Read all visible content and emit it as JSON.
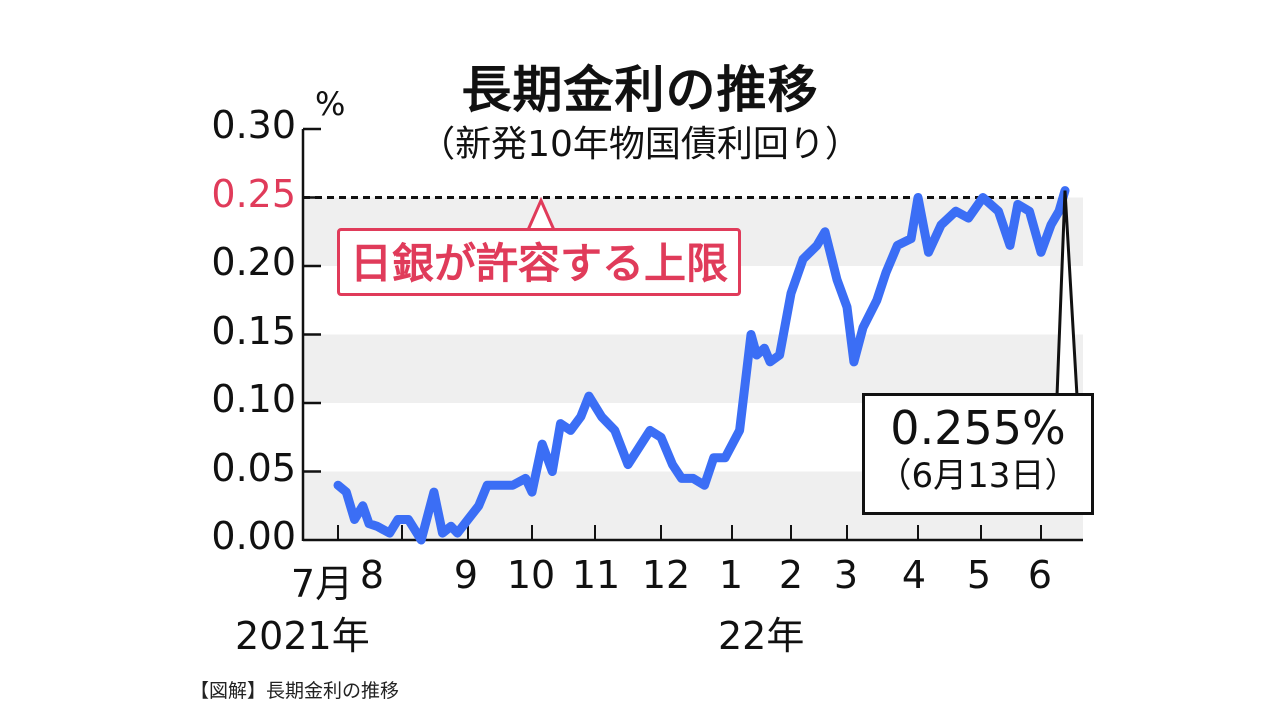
{
  "title": "長期金利の推移",
  "subtitle": "（新発10年物国債利回り）",
  "y_unit": "%",
  "y_ticks": [
    {
      "label": "0.30",
      "value": 0.3,
      "color": "#111111"
    },
    {
      "label": "0.25",
      "value": 0.25,
      "color": "#e03b5a"
    },
    {
      "label": "0.20",
      "value": 0.2,
      "color": "#111111"
    },
    {
      "label": "0.15",
      "value": 0.15,
      "color": "#111111"
    },
    {
      "label": "0.10",
      "value": 0.1,
      "color": "#111111"
    },
    {
      "label": "0.05",
      "value": 0.05,
      "color": "#111111"
    },
    {
      "label": "0.00",
      "value": 0.0,
      "color": "#111111"
    }
  ],
  "x_months": [
    "7月",
    "8",
    "9",
    "10",
    "11",
    "12",
    "1",
    "2",
    "3",
    "4",
    "5",
    "6"
  ],
  "x_years": [
    {
      "label": "2021年"
    },
    {
      "label": "22年"
    }
  ],
  "limit_annotation": {
    "label": "日銀が許容する上限",
    "value": 0.25
  },
  "callout": {
    "value": "0.255%",
    "date": "（6月13日）"
  },
  "caption": "【図解】長期金利の推移",
  "colors": {
    "line": "#3b6ef5",
    "limit": "#e03b5a",
    "band": "#efefef",
    "axis": "#111111"
  },
  "chart_data": {
    "type": "line",
    "title": "長期金利の推移",
    "subtitle": "（新発10年物国債利回り）",
    "xlabel": "",
    "ylabel": "%",
    "ylim": [
      0.0,
      0.3
    ],
    "y_ticks": [
      0.0,
      0.05,
      0.1,
      0.15,
      0.2,
      0.25,
      0.3
    ],
    "x_tick_labels": [
      "7月",
      "8",
      "9",
      "10",
      "11",
      "12",
      "1",
      "2",
      "3",
      "4",
      "5",
      "6"
    ],
    "x_year_labels": [
      "2021年",
      "22年"
    ],
    "grid": "alternating horizontal bands",
    "reference_line": {
      "value": 0.25,
      "label": "日銀が許容する上限",
      "style": "dashed"
    },
    "annotation": {
      "x": "2022-06-13",
      "y": 0.255,
      "text": "0.255%（6月13日）"
    },
    "series": [
      {
        "name": "新発10年物国債利回り",
        "x": [
          "2021-07-01",
          "2021-07-05",
          "2021-07-09",
          "2021-07-13",
          "2021-07-16",
          "2021-07-20",
          "2021-07-26",
          "2021-07-30",
          "2021-08-04",
          "2021-08-10",
          "2021-08-16",
          "2021-08-20",
          "2021-08-24",
          "2021-08-27",
          "2021-09-01",
          "2021-09-06",
          "2021-09-10",
          "2021-09-15",
          "2021-09-22",
          "2021-09-28",
          "2021-10-01",
          "2021-10-06",
          "2021-10-11",
          "2021-10-15",
          "2021-10-20",
          "2021-10-25",
          "2021-10-29",
          "2021-11-04",
          "2021-11-10",
          "2021-11-16",
          "2021-11-22",
          "2021-11-26",
          "2021-12-01",
          "2021-12-06",
          "2021-12-10",
          "2021-12-15",
          "2021-12-20",
          "2021-12-24",
          "2021-12-29",
          "2022-01-05",
          "2022-01-11",
          "2022-01-14",
          "2022-01-18",
          "2022-01-21",
          "2022-01-26",
          "2022-02-01",
          "2022-02-07",
          "2022-02-14",
          "2022-02-18",
          "2022-02-24",
          "2022-03-01",
          "2022-03-04",
          "2022-03-08",
          "2022-03-14",
          "2022-03-18",
          "2022-03-23",
          "2022-03-29",
          "2022-04-01",
          "2022-04-06",
          "2022-04-12",
          "2022-04-19",
          "2022-04-25",
          "2022-05-02",
          "2022-05-10",
          "2022-05-16",
          "2022-05-20",
          "2022-05-26",
          "2022-06-01",
          "2022-06-06",
          "2022-06-10",
          "2022-06-13"
        ],
        "values": [
          0.04,
          0.035,
          0.015,
          0.025,
          0.012,
          0.01,
          0.005,
          0.015,
          0.015,
          0.0,
          0.035,
          0.005,
          0.01,
          0.005,
          0.015,
          0.025,
          0.04,
          0.04,
          0.04,
          0.045,
          0.035,
          0.07,
          0.05,
          0.085,
          0.08,
          0.09,
          0.105,
          0.09,
          0.08,
          0.055,
          0.07,
          0.08,
          0.075,
          0.055,
          0.045,
          0.045,
          0.04,
          0.06,
          0.06,
          0.08,
          0.15,
          0.135,
          0.14,
          0.13,
          0.135,
          0.18,
          0.205,
          0.215,
          0.225,
          0.19,
          0.17,
          0.13,
          0.155,
          0.175,
          0.195,
          0.215,
          0.22,
          0.25,
          0.21,
          0.23,
          0.24,
          0.235,
          0.25,
          0.24,
          0.215,
          0.245,
          0.24,
          0.21,
          0.23,
          0.24,
          0.255
        ]
      }
    ]
  }
}
